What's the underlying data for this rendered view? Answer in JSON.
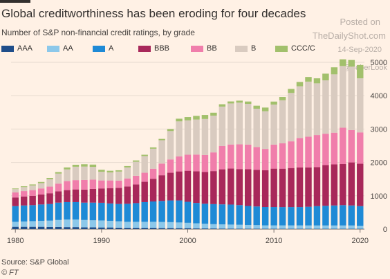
{
  "header": {
    "title": "Global creditworthiness has been eroding for four decades",
    "subtitle": "Number of S&P non-financial credit ratings, by grade"
  },
  "watermark": {
    "line1": "Posted on",
    "line2": "TheDailyShot.com",
    "line3": "14-Sep-2020",
    "line4": "@SoberLook"
  },
  "footer": {
    "source": "Source: S&P Global",
    "copyright": "© FT"
  },
  "chart_data": {
    "type": "bar",
    "stacked": true,
    "x": [
      1980,
      1981,
      1982,
      1983,
      1984,
      1985,
      1986,
      1987,
      1988,
      1989,
      1990,
      1991,
      1992,
      1993,
      1994,
      1995,
      1996,
      1997,
      1998,
      1999,
      2000,
      2001,
      2002,
      2003,
      2004,
      2005,
      2006,
      2007,
      2008,
      2009,
      2010,
      2011,
      2012,
      2013,
      2014,
      2015,
      2016,
      2017,
      2018,
      2019,
      2020
    ],
    "xticks": [
      1980,
      1990,
      2000,
      2010,
      2020
    ],
    "ylim": [
      0,
      5000
    ],
    "yticks": [
      0,
      1000,
      2000,
      3000,
      4000,
      5000
    ],
    "grid": true,
    "legend_position": "top",
    "series": [
      {
        "name": "AAA",
        "color": "#1f4e8a",
        "values": [
          70,
          70,
          70,
          70,
          65,
          65,
          60,
          60,
          55,
          55,
          50,
          50,
          45,
          40,
          40,
          40,
          40,
          35,
          35,
          30,
          30,
          25,
          22,
          20,
          18,
          17,
          16,
          15,
          15,
          14,
          13,
          12,
          12,
          12,
          11,
          10,
          10,
          10,
          10,
          10,
          10
        ]
      },
      {
        "name": "AA",
        "color": "#8cc8ea",
        "values": [
          150,
          160,
          170,
          180,
          190,
          210,
          230,
          230,
          220,
          210,
          210,
          200,
          190,
          180,
          180,
          180,
          180,
          180,
          175,
          170,
          160,
          150,
          140,
          130,
          125,
          120,
          115,
          110,
          105,
          100,
          100,
          100,
          100,
          100,
          100,
          100,
          100,
          100,
          100,
          100,
          90
        ]
      },
      {
        "name": "A",
        "color": "#1e8ad6",
        "values": [
          470,
          480,
          480,
          490,
          500,
          520,
          520,
          520,
          520,
          530,
          530,
          520,
          520,
          540,
          560,
          590,
          610,
          630,
          650,
          660,
          630,
          610,
          600,
          600,
          600,
          600,
          590,
          570,
          560,
          550,
          550,
          550,
          550,
          550,
          560,
          580,
          590,
          600,
          610,
          600,
          590
        ]
      },
      {
        "name": "BBB",
        "color": "#a8285a",
        "values": [
          260,
          270,
          280,
          300,
          320,
          340,
          360,
          380,
          390,
          410,
          430,
          460,
          480,
          520,
          560,
          610,
          680,
          770,
          830,
          870,
          930,
          950,
          950,
          990,
          1050,
          1080,
          1080,
          1100,
          1100,
          1100,
          1150,
          1150,
          1170,
          1190,
          1180,
          1170,
          1220,
          1230,
          1230,
          1290,
          1270
        ]
      },
      {
        "name": "BB",
        "color": "#f07eab",
        "values": [
          150,
          160,
          170,
          180,
          200,
          230,
          270,
          280,
          290,
          280,
          240,
          230,
          220,
          240,
          260,
          270,
          300,
          350,
          400,
          450,
          480,
          500,
          510,
          560,
          700,
          720,
          740,
          740,
          680,
          640,
          720,
          760,
          800,
          880,
          920,
          960,
          940,
          950,
          1090,
          970,
          940
        ]
      },
      {
        "name": "B",
        "color": "#d9cbc0",
        "values": [
          100,
          120,
          140,
          160,
          220,
          300,
          350,
          400,
          400,
          380,
          260,
          240,
          270,
          330,
          420,
          500,
          600,
          700,
          850,
          1050,
          1030,
          1050,
          1080,
          1100,
          1180,
          1230,
          1250,
          1220,
          1150,
          1130,
          1200,
          1290,
          1450,
          1550,
          1650,
          1550,
          1600,
          1750,
          1850,
          1900,
          1620
        ]
      },
      {
        "name": "CCC/C",
        "color": "#a2c06c",
        "values": [
          20,
          25,
          30,
          35,
          40,
          45,
          60,
          60,
          70,
          70,
          60,
          50,
          40,
          40,
          40,
          40,
          40,
          40,
          60,
          80,
          100,
          110,
          120,
          90,
          70,
          60,
          60,
          70,
          90,
          110,
          90,
          100,
          120,
          130,
          140,
          150,
          200,
          210,
          200,
          200,
          400
        ]
      }
    ]
  }
}
